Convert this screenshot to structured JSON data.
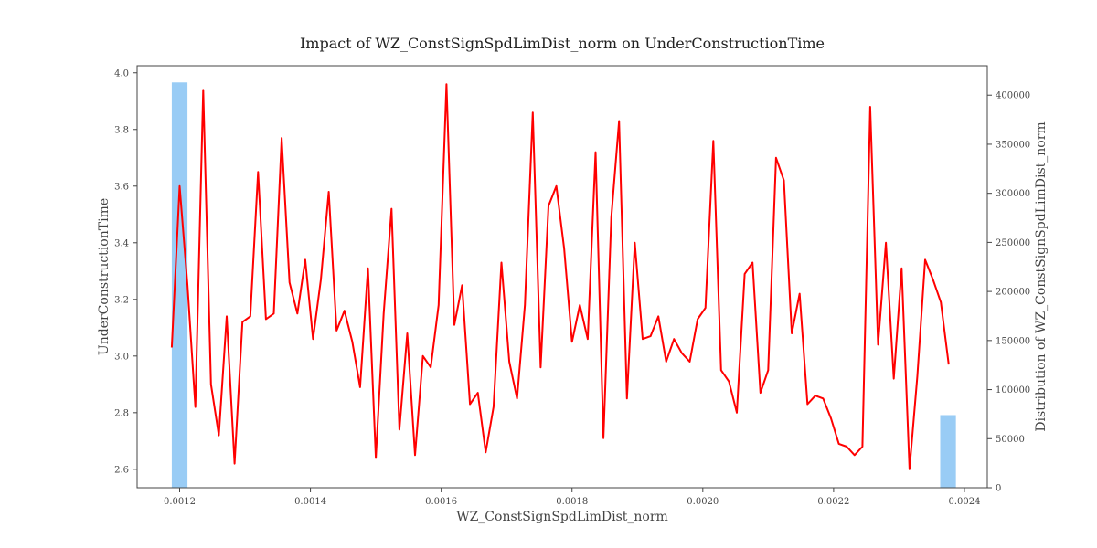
{
  "chart_data": {
    "type": "line",
    "title": "Impact of WZ_ConstSignSpdLimDist_norm on UnderConstructionTime",
    "xlabel": "WZ_ConstSignSpdLimDist_norm",
    "ylabel": "UnderConstructionTime",
    "y2label": "Distribution of WZ_ConstSignSpdLimDist_norm",
    "xlim": [
      0.001135,
      0.002435
    ],
    "ylim": [
      2.535,
      4.025
    ],
    "y2lim": [
      0,
      430000
    ],
    "xticks": [
      0.0012,
      0.0014,
      0.0016,
      0.0018,
      0.002,
      0.0022,
      0.0024
    ],
    "xtick_labels": [
      "0.0012",
      "0.0014",
      "0.0016",
      "0.0018",
      "0.0020",
      "0.0022",
      "0.0024"
    ],
    "yticks": [
      2.6,
      2.8,
      3.0,
      3.2,
      3.4,
      3.6,
      3.8,
      4.0
    ],
    "ytick_labels": [
      "2.6",
      "2.8",
      "3.0",
      "3.2",
      "3.4",
      "3.6",
      "3.8",
      "4.0"
    ],
    "y2ticks": [
      0,
      50000,
      100000,
      150000,
      200000,
      250000,
      300000,
      350000,
      400000
    ],
    "y2tick_labels": [
      "0",
      "50000",
      "100000",
      "150000",
      "200000",
      "250000",
      "300000",
      "350000",
      "400000"
    ],
    "grid": false,
    "line_color": "#ff0000",
    "bar_color": "#99ccf5",
    "bars": [
      {
        "x0": 0.001188,
        "x1": 0.001212,
        "value": 413000
      },
      {
        "x0": 0.002363,
        "x1": 0.002387,
        "value": 74000
      }
    ],
    "series": [
      {
        "x": [
          0.001188,
          0.0012,
          0.001212,
          0.001224,
          0.001236,
          0.001248,
          0.00126,
          0.001272,
          0.001284,
          0.001296,
          0.001308,
          0.00132,
          0.001332,
          0.001344,
          0.001356,
          0.001368,
          0.00138,
          0.001392,
          0.001404,
          0.001416,
          0.001428,
          0.00144,
          0.001452,
          0.001464,
          0.001476,
          0.001488,
          0.0015,
          0.001512,
          0.001524,
          0.001536,
          0.001548,
          0.00156,
          0.001572,
          0.001584,
          0.001596,
          0.001608,
          0.00162,
          0.001632,
          0.001644,
          0.001656,
          0.001668,
          0.00168,
          0.001692,
          0.001704,
          0.001716,
          0.001728,
          0.00174,
          0.001752,
          0.001764,
          0.001776,
          0.001788,
          0.0018,
          0.001812,
          0.001824,
          0.001836,
          0.001848,
          0.00186,
          0.001872,
          0.001884,
          0.001896,
          0.001908,
          0.00192,
          0.001932,
          0.001944,
          0.001956,
          0.001968,
          0.00198,
          0.001992,
          0.002004,
          0.002016,
          0.002028,
          0.00204,
          0.002052,
          0.002064,
          0.002076,
          0.002088,
          0.0021,
          0.002112,
          0.002124,
          0.002136,
          0.002148,
          0.00216,
          0.002172,
          0.002184,
          0.002196,
          0.002208,
          0.00222,
          0.002232,
          0.002244,
          0.002256,
          0.002268,
          0.00228,
          0.002292,
          0.002304,
          0.002316,
          0.002328,
          0.00234,
          0.002352,
          0.002364,
          0.002376
        ],
        "values": [
          3.03,
          3.6,
          3.25,
          2.82,
          3.94,
          2.9,
          2.72,
          3.14,
          2.62,
          3.12,
          3.14,
          3.65,
          3.13,
          3.15,
          3.77,
          3.26,
          3.15,
          3.34,
          3.06,
          3.27,
          3.58,
          3.09,
          3.16,
          3.05,
          2.89,
          3.31,
          2.64,
          3.15,
          3.52,
          2.74,
          3.08,
          2.65,
          3.0,
          2.96,
          3.18,
          3.96,
          3.11,
          3.25,
          2.83,
          2.87,
          2.66,
          2.82,
          3.33,
          2.98,
          2.85,
          3.18,
          3.86,
          2.96,
          3.53,
          3.6,
          3.38,
          3.05,
          3.18,
          3.06,
          3.72,
          2.71,
          3.49,
          3.83,
          2.85,
          3.4,
          3.06,
          3.07,
          3.14,
          2.98,
          3.06,
          3.01,
          2.98,
          3.13,
          3.17,
          3.76,
          2.95,
          2.91,
          2.8,
          3.29,
          3.33,
          2.87,
          2.95,
          3.7,
          3.62,
          3.08,
          3.22,
          2.83,
          2.86,
          2.85,
          2.78,
          2.69,
          2.68,
          2.65,
          2.68,
          3.88,
          3.04,
          3.4,
          2.92,
          3.31,
          2.6,
          2.93,
          3.34,
          3.27,
          3.19,
          2.97
        ]
      }
    ]
  }
}
